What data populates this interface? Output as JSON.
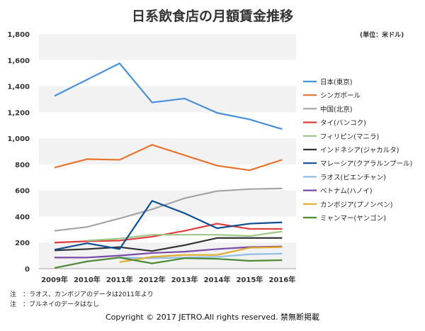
{
  "chart_data": {
    "type": "line",
    "title": "日系飲食店の月額賃金推移",
    "unit_label": "(単位：米ドル)",
    "categories": [
      "2009年",
      "2010年",
      "2011年",
      "2012年",
      "2013年",
      "2014年",
      "2015年",
      "2016年"
    ],
    "ylim": [
      0,
      1800
    ],
    "yticks": [
      "0",
      "200",
      "400",
      "600",
      "800",
      "1,000",
      "1,200",
      "1,400",
      "1,600",
      "1,800"
    ],
    "grid": "alternating bands",
    "legend": "right",
    "series": [
      {
        "name": "日本(東京)",
        "color": "#4a90d6",
        "values": [
          1325,
          1450,
          1575,
          1275,
          1305,
          1195,
          1145,
          1070
        ]
      },
      {
        "name": "シンガポール",
        "color": "#e87330",
        "values": [
          775,
          840,
          835,
          950,
          870,
          790,
          755,
          835
        ]
      },
      {
        "name": "中国(北京)",
        "color": "#a5a5a5",
        "values": [
          290,
          320,
          385,
          455,
          540,
          595,
          610,
          615
        ]
      },
      {
        "name": "タイ(バンコク)",
        "color": "#e03c3c",
        "values": [
          200,
          210,
          215,
          245,
          290,
          345,
          305,
          305
        ]
      },
      {
        "name": "フィリピン(マニラ)",
        "color": "#9dc684",
        "values": [
          null,
          215,
          230,
          260,
          260,
          260,
          250,
          285
        ]
      },
      {
        "name": "インドネシア(ジャカルタ)",
        "color": "#333333",
        "values": [
          140,
          150,
          165,
          135,
          180,
          235,
          235,
          235
        ]
      },
      {
        "name": "マレーシア(クアラルンプール)",
        "color": "#0e4f8f",
        "values": [
          145,
          195,
          150,
          520,
          425,
          310,
          345,
          355
        ]
      },
      {
        "name": "ラオス(ビエンチャン)",
        "color": "#92bde6",
        "values": [
          null,
          null,
          85,
          80,
          85,
          90,
          110,
          115
        ]
      },
      {
        "name": "ベトナム(ハノイ)",
        "color": "#7a4aa8",
        "values": [
          85,
          85,
          100,
          120,
          130,
          150,
          165,
          170
        ]
      },
      {
        "name": "カンボジア(プノンペン)",
        "color": "#e0ac2a",
        "values": [
          null,
          null,
          50,
          90,
          105,
          105,
          160,
          165
        ]
      },
      {
        "name": "ミャンマー(ヤンゴン)",
        "color": "#4e8a35",
        "values": [
          5,
          55,
          85,
          40,
          80,
          75,
          60,
          65
        ]
      }
    ]
  },
  "notes": [
    "注　：ラオス、カンボジアのデータは2011年より",
    "注　：ブルネイのデータはなし"
  ],
  "copyright": "Copyright © 2017 JETRO.All rights reserved. 禁無断掲載"
}
